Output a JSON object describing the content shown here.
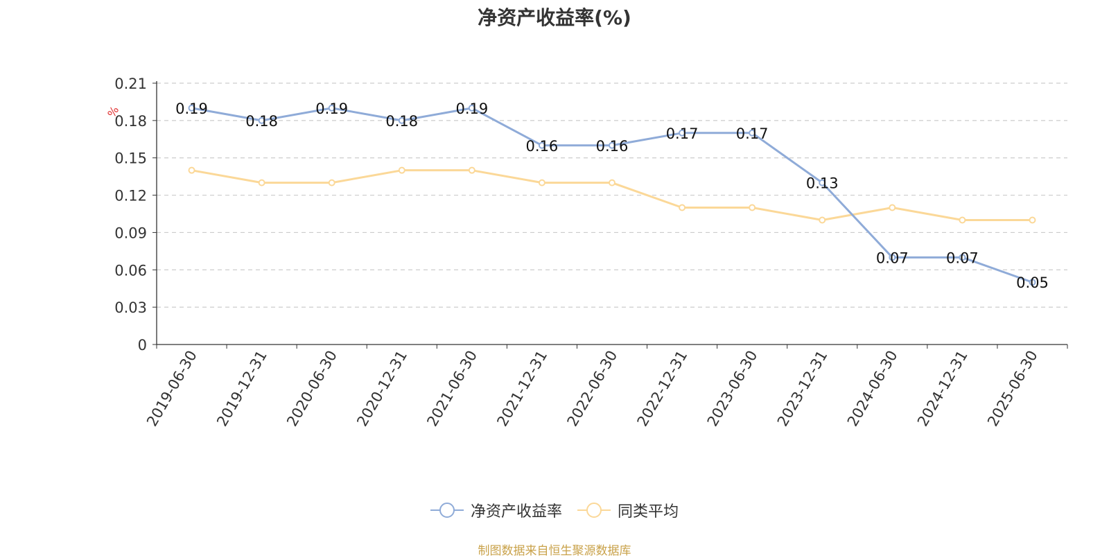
{
  "chart_data": {
    "type": "line",
    "title": "净资产收益率(%)",
    "ylabel": "%",
    "xlabel": "",
    "categories": [
      "2019-06-30",
      "2019-12-31",
      "2020-06-30",
      "2020-12-31",
      "2021-06-30",
      "2021-12-31",
      "2022-06-30",
      "2022-12-31",
      "2023-06-30",
      "2023-12-31",
      "2024-06-30",
      "2024-12-31",
      "2025-06-30"
    ],
    "ylim": [
      0,
      0.21
    ],
    "yticks": [
      "0",
      "0.03",
      "0.06",
      "0.09",
      "0.12",
      "0.15",
      "0.18",
      "0.21"
    ],
    "grid": true,
    "legend_position": "bottom-center",
    "series": [
      {
        "name": "净资产收益率",
        "color": "#8fabd8",
        "show_labels": true,
        "values": [
          0.19,
          0.18,
          0.19,
          0.18,
          0.19,
          0.16,
          0.16,
          0.17,
          0.17,
          0.13,
          0.07,
          0.07,
          0.05
        ],
        "labels": [
          "0.19",
          "0.18",
          "0.19",
          "0.18",
          "0.19",
          "0.16",
          "0.16",
          "0.17",
          "0.17",
          "0.13",
          "0.07",
          "0.07",
          "0.05"
        ]
      },
      {
        "name": "同类平均",
        "color": "#fbd898",
        "show_labels": false,
        "values": [
          0.14,
          0.13,
          0.13,
          0.14,
          0.14,
          0.13,
          0.13,
          0.11,
          0.11,
          0.1,
          0.11,
          0.1,
          0.1
        ]
      }
    ]
  },
  "source_note": "制图数据来自恒生聚源数据库"
}
